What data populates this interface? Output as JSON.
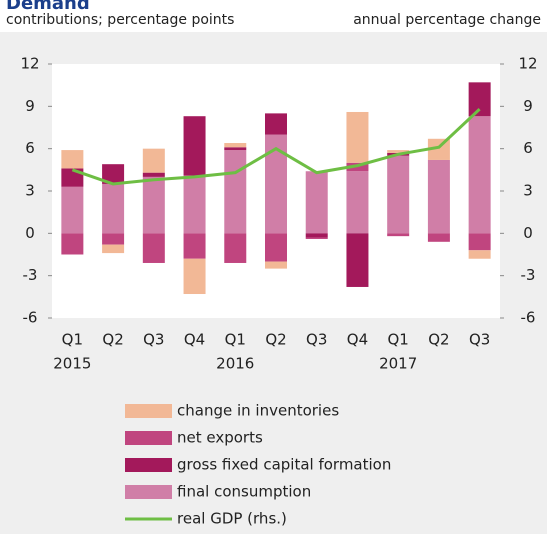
{
  "chart_data": {
    "type": "stacked-bar-line",
    "title": "Demand",
    "ylabel": "contributions; percentage points",
    "y2label": "annual percentage change",
    "categories": [
      "Q1",
      "Q2",
      "Q3",
      "Q4",
      "Q1",
      "Q2",
      "Q3",
      "Q4",
      "Q1",
      "Q2",
      "Q3"
    ],
    "years": [
      "2015",
      null,
      null,
      null,
      "2016",
      null,
      null,
      null,
      "2017",
      null,
      null
    ],
    "ylim": [
      -6,
      12
    ],
    "yticks": [
      -6,
      -3,
      0,
      3,
      6,
      9,
      12
    ],
    "y2lim": [
      -6,
      12
    ],
    "y2ticks": [
      -6,
      -3,
      0,
      3,
      6,
      9,
      12
    ],
    "series": [
      {
        "name": "final consumption",
        "color": "#d07ea7",
        "values": [
          3.3,
          3.5,
          4.0,
          4.1,
          5.9,
          7.0,
          4.4,
          4.4,
          5.5,
          5.2,
          8.3
        ]
      },
      {
        "name": "gross fixed capital formation",
        "color": "#a3195b",
        "values": [
          1.3,
          1.4,
          0.3,
          4.2,
          0.2,
          1.5,
          -0.3,
          -3.8,
          0.2,
          0,
          2.4
        ]
      },
      {
        "name": "net exports",
        "color": "#c0457f",
        "values": [
          -1.5,
          -0.8,
          -2.1,
          -1.8,
          -2.1,
          -2.0,
          -0.1,
          0.6,
          -0.2,
          -0.6,
          -1.2
        ]
      },
      {
        "name": "change in inventories",
        "color": "#f2b896",
        "values": [
          1.3,
          -0.6,
          1.7,
          -2.5,
          0.3,
          -0.5,
          0,
          3.6,
          0.2,
          1.5,
          -0.6
        ]
      },
      {
        "name": "real GDP (rhs.)",
        "color": "#6ebe44",
        "axis": "y2",
        "kind": "line",
        "values": [
          4.5,
          3.5,
          3.8,
          4.0,
          4.3,
          6.0,
          4.3,
          4.8,
          5.6,
          6.1,
          8.8
        ]
      }
    ]
  }
}
